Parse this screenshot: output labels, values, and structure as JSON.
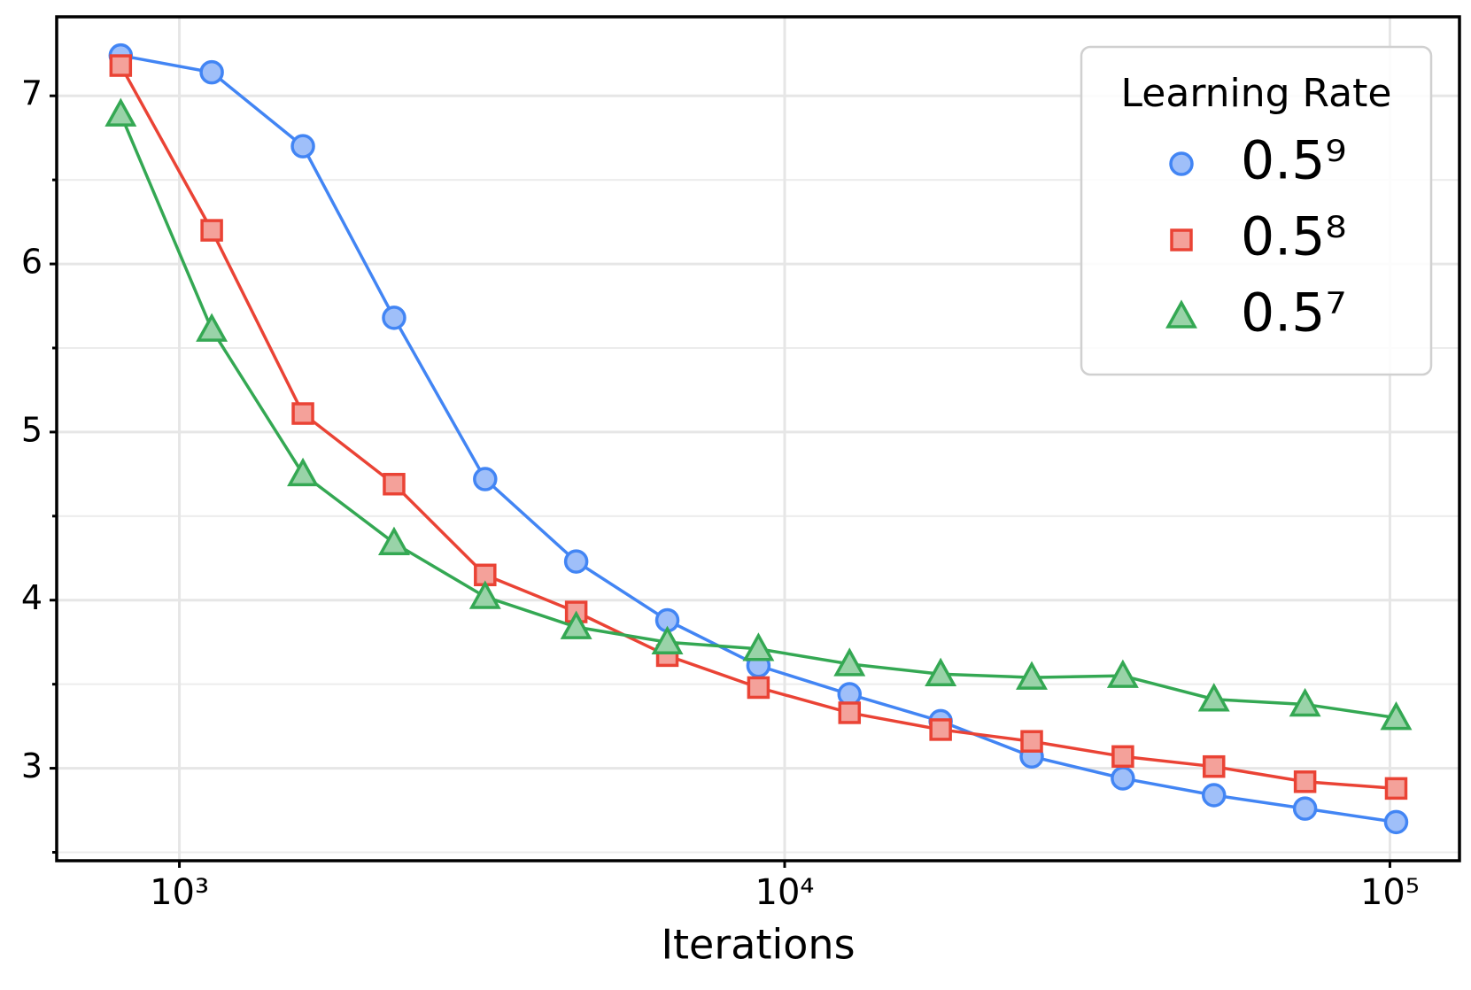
{
  "chart_data": {
    "type": "line",
    "xlabel": "Iterations",
    "legend_title": "Learning Rate",
    "legend": "upper right",
    "xscale": "log",
    "grid": true,
    "x": [
      800,
      1131,
      1600,
      2263,
      3200,
      4525,
      6400,
      9051,
      12800,
      18102,
      25600,
      36204,
      51200,
      72408,
      102400
    ],
    "xlim": [
      627,
      130300
    ],
    "xticks": [
      {
        "value": 1000,
        "label": "10³"
      },
      {
        "value": 10000,
        "label": "10⁴"
      },
      {
        "value": 100000,
        "label": "10⁵"
      }
    ],
    "ylim": [
      2.45,
      7.47
    ],
    "yticks": [
      3,
      4,
      5,
      6,
      7
    ],
    "yminorticks": [
      2.5,
      3.5,
      4.5,
      5.5,
      6.5
    ],
    "series": [
      {
        "name": "0.5⁹",
        "color": "#4285f4",
        "fill": "#9fbff9",
        "marker": "circle",
        "values": [
          7.24,
          7.14,
          6.7,
          5.68,
          4.72,
          4.23,
          3.88,
          3.61,
          3.44,
          3.28,
          3.07,
          2.94,
          2.84,
          2.76,
          2.68
        ]
      },
      {
        "name": "0.5⁸",
        "color": "#ea4335",
        "fill": "#f4a19a",
        "marker": "square",
        "values": [
          7.18,
          6.2,
          5.11,
          4.69,
          4.15,
          3.93,
          3.67,
          3.48,
          3.33,
          3.23,
          3.16,
          3.07,
          3.01,
          2.92,
          2.88
        ]
      },
      {
        "name": "0.5⁷",
        "color": "#34a853",
        "fill": "#99d3a8",
        "marker": "triangle",
        "values": [
          6.89,
          5.61,
          4.75,
          4.34,
          4.02,
          3.84,
          3.75,
          3.71,
          3.62,
          3.56,
          3.54,
          3.55,
          3.41,
          3.38,
          3.3
        ]
      }
    ]
  }
}
